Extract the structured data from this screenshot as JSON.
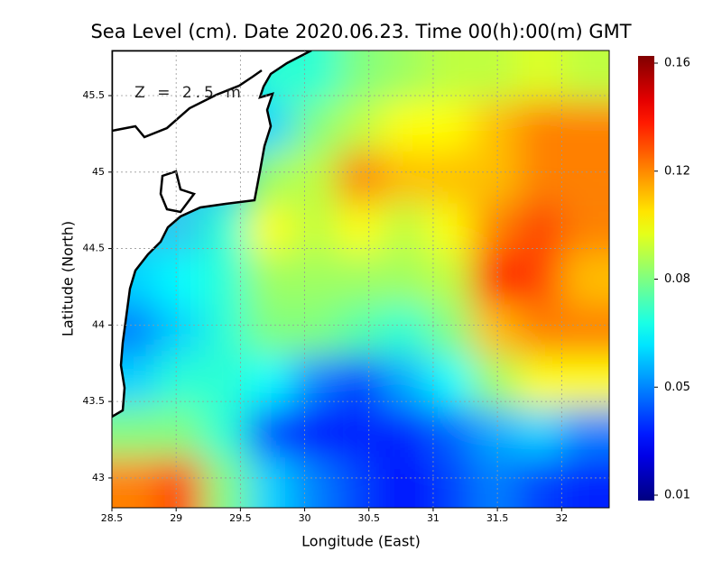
{
  "chart_data": {
    "type": "heatmap",
    "title": "Sea Level (cm). Date 2020.06.23. Time 00(h):00(m) GMT",
    "x_label": "Longitude (East)",
    "y_label": "Latitude (North)",
    "annotation": "Z = 2.5 m",
    "xlim": [
      28.5,
      32.37
    ],
    "ylim": [
      42.805,
      45.795
    ],
    "xticks": [
      28.5,
      29,
      29.5,
      30,
      30.5,
      31,
      31.5,
      32
    ],
    "yticks": [
      43,
      43.5,
      44,
      44.5,
      45,
      45.5
    ],
    "grid": true,
    "colormap": "jet",
    "clim": [
      0.01,
      0.16
    ],
    "cticks": [
      0.01,
      0.05,
      0.08,
      0.12,
      0.16
    ],
    "x": [
      28.68,
      29.03,
      29.38,
      29.73,
      30.08,
      30.43,
      30.78,
      31.13,
      31.48,
      31.83,
      32.18
    ],
    "y": [
      45.63,
      45.3,
      44.97,
      44.63,
      44.3,
      43.97,
      43.63,
      43.3,
      42.97
    ],
    "values": [
      [
        null,
        null,
        null,
        0.07,
        0.07,
        0.08,
        0.085,
        0.09,
        0.09,
        0.095,
        0.09
      ],
      [
        null,
        null,
        null,
        0.06,
        0.08,
        0.09,
        0.1,
        0.1,
        0.11,
        0.12,
        0.12
      ],
      [
        null,
        null,
        null,
        0.085,
        0.09,
        0.12,
        0.11,
        0.11,
        0.11,
        0.12,
        0.12
      ],
      [
        null,
        null,
        0.07,
        0.1,
        0.09,
        0.1,
        0.09,
        0.1,
        0.12,
        0.13,
        0.12
      ],
      [
        0.06,
        0.065,
        0.07,
        0.085,
        0.085,
        0.085,
        0.085,
        0.09,
        0.14,
        0.13,
        0.11
      ],
      [
        0.05,
        0.06,
        0.07,
        0.08,
        0.08,
        0.075,
        0.07,
        0.08,
        0.11,
        0.12,
        0.12
      ],
      [
        0.06,
        0.07,
        0.07,
        0.065,
        0.05,
        0.04,
        0.055,
        0.065,
        0.085,
        0.1,
        0.1
      ],
      [
        0.08,
        0.08,
        0.07,
        0.04,
        0.03,
        0.035,
        0.035,
        0.045,
        0.055,
        0.06,
        0.05
      ],
      [
        0.12,
        0.13,
        0.08,
        0.06,
        0.05,
        0.04,
        0.03,
        0.04,
        0.05,
        0.04,
        0.035
      ]
    ]
  }
}
